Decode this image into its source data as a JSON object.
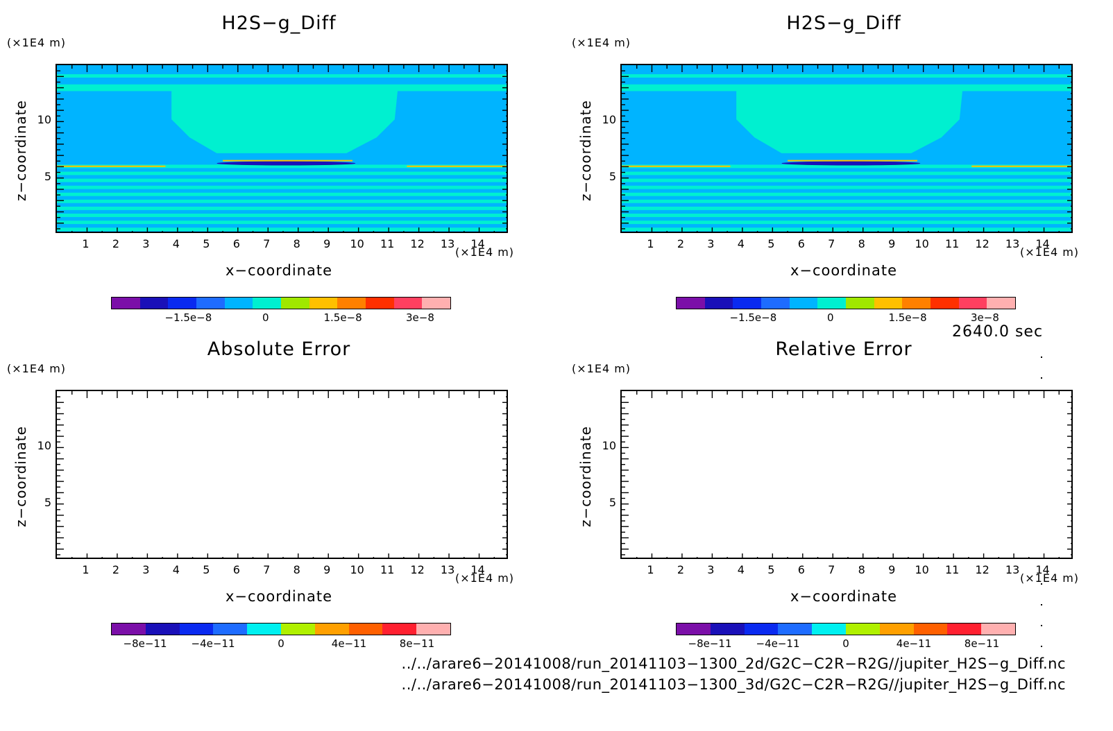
{
  "chart_data": [
    {
      "type": "heatmap",
      "title": "H2S−g_Diff",
      "xlabel": "x−coordinate",
      "ylabel": "z−coordinate",
      "x_unit": "(×1E4 m)",
      "y_unit": "(×1E4 m)",
      "xticks": [
        "1",
        "2",
        "3",
        "4",
        "5",
        "6",
        "7",
        "8",
        "9",
        "10",
        "11",
        "12",
        "13",
        "14"
      ],
      "yticks": [
        "5",
        "10"
      ],
      "xlim": [
        0,
        15
      ],
      "ylim": [
        0,
        15
      ],
      "filled": true,
      "colorbar": {
        "colors": [
          "#7b0fa8",
          "#1a10b8",
          "#0a2af0",
          "#1e6cff",
          "#00b4ff",
          "#00f0d0",
          "#a0e800",
          "#ffc000",
          "#ff8000",
          "#ff3000",
          "#ff4060",
          "#ffb0b0"
        ],
        "tick_labels": [
          "−1.5e−8",
          "0",
          "1.5e−8",
          "3e−8"
        ],
        "tick_values": [
          -1.5e-08,
          0,
          1.5e-08,
          3e-08
        ],
        "range": [
          -3e-08,
          3.6e-08
        ]
      }
    },
    {
      "type": "heatmap",
      "title": "H2S−g_Diff",
      "xlabel": "x−coordinate",
      "ylabel": "z−coordinate",
      "x_unit": "(×1E4 m)",
      "y_unit": "(×1E4 m)",
      "xticks": [
        "1",
        "2",
        "3",
        "4",
        "5",
        "6",
        "7",
        "8",
        "9",
        "10",
        "11",
        "12",
        "13",
        "14"
      ],
      "yticks": [
        "5",
        "10"
      ],
      "xlim": [
        0,
        15
      ],
      "ylim": [
        0,
        15
      ],
      "filled": true,
      "colorbar": {
        "colors": [
          "#7b0fa8",
          "#1a10b8",
          "#0a2af0",
          "#1e6cff",
          "#00b4ff",
          "#00f0d0",
          "#a0e800",
          "#ffc000",
          "#ff8000",
          "#ff3000",
          "#ff4060",
          "#ffb0b0"
        ],
        "tick_labels": [
          "−1.5e−8",
          "0",
          "1.5e−8",
          "3e−8"
        ],
        "tick_values": [
          -1.5e-08,
          0,
          1.5e-08,
          3e-08
        ],
        "range": [
          -3e-08,
          3.6e-08
        ]
      }
    },
    {
      "type": "heatmap",
      "title": "Absolute Error",
      "xlabel": "x−coordinate",
      "ylabel": "z−coordinate",
      "x_unit": "(×1E4 m)",
      "y_unit": "(×1E4 m)",
      "xticks": [
        "1",
        "2",
        "3",
        "4",
        "5",
        "6",
        "7",
        "8",
        "9",
        "10",
        "11",
        "12",
        "13",
        "14"
      ],
      "yticks": [
        "5",
        "10"
      ],
      "xlim": [
        0,
        15
      ],
      "ylim": [
        0,
        15
      ],
      "filled": false,
      "colorbar": {
        "colors": [
          "#7b0fa8",
          "#1a10b8",
          "#0a2af0",
          "#1e6cff",
          "#00f0f0",
          "#b0f000",
          "#ffa000",
          "#ff6000",
          "#ff2030",
          "#ffb0b0"
        ],
        "tick_labels": [
          "−8e−11",
          "−4e−11",
          "0",
          "4e−11",
          "8e−11"
        ],
        "tick_values": [
          -8e-11,
          -4e-11,
          0,
          4e-11,
          8e-11
        ],
        "range": [
          -1e-10,
          1e-10
        ]
      }
    },
    {
      "type": "heatmap",
      "title": "Relative Error",
      "xlabel": "x−coordinate",
      "ylabel": "z−coordinate",
      "x_unit": "(×1E4 m)",
      "y_unit": "(×1E4 m)",
      "xticks": [
        "1",
        "2",
        "3",
        "4",
        "5",
        "6",
        "7",
        "8",
        "9",
        "10",
        "11",
        "12",
        "13",
        "14"
      ],
      "yticks": [
        "5",
        "10"
      ],
      "xlim": [
        0,
        15
      ],
      "ylim": [
        0,
        15
      ],
      "filled": false,
      "colorbar": {
        "colors": [
          "#7b0fa8",
          "#1a10b8",
          "#0a2af0",
          "#1e6cff",
          "#00f0f0",
          "#b0f000",
          "#ffa000",
          "#ff6000",
          "#ff2030",
          "#ffb0b0"
        ],
        "tick_labels": [
          "−8e−11",
          "−4e−11",
          "0",
          "4e−11",
          "8e−11"
        ],
        "tick_values": [
          -8e-11,
          -4e-11,
          0,
          4e-11,
          8e-11
        ],
        "range": [
          -1e-10,
          1e-10
        ]
      }
    }
  ],
  "annotations": {
    "time": "2640.0 sec",
    "file1": "../../arare6−20141008/run_20141103−1300_2d/G2C−C2R−R2G//jupiter_H2S−g_Diff.nc",
    "file2": "../../arare6−20141008/run_20141103−1300_3d/G2C−C2R−R2G//jupiter_H2S−g_Diff.nc"
  },
  "colors": {
    "field_base": "#00b4ff",
    "field_band": "#00f0d0",
    "field_low": "#1a10b8",
    "field_high": "#ffc000"
  }
}
